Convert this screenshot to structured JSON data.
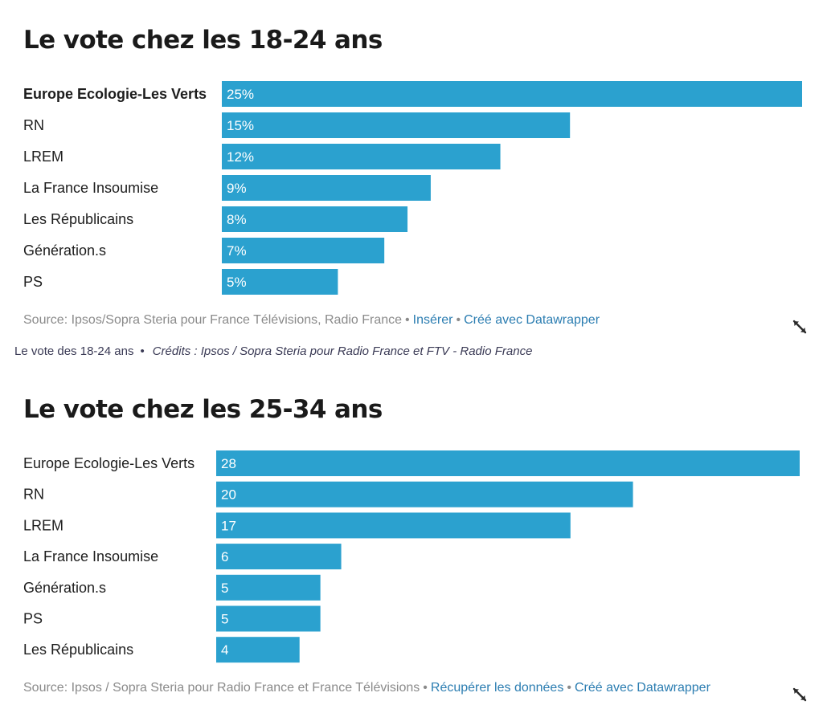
{
  "colors": {
    "bar": "#2ba1cf",
    "link": "#2b7db1",
    "source": "#8a8a8a"
  },
  "caption": {
    "title": "Le vote des 18-24 ans",
    "separator": "•",
    "credits": "Crédits : Ipsos / Sopra Steria pour Radio France et FTV - Radio France"
  },
  "chart_data": [
    {
      "type": "bar",
      "orientation": "horizontal",
      "title": "Le vote chez les 18-24 ans",
      "categories": [
        "Europe Ecologie-Les Verts",
        "RN",
        "LREM",
        "La France Insoumise",
        "Les Républicains",
        "Génération.s",
        "PS"
      ],
      "values": [
        25,
        15,
        12,
        9,
        8,
        7,
        5
      ],
      "value_labels": [
        "25%",
        "15%",
        "12%",
        "9%",
        "8%",
        "7%",
        "5%"
      ],
      "highlighted": "Europe Ecologie-Les Verts",
      "xlim": [
        0,
        25
      ],
      "grid": false,
      "legend": "none",
      "source": {
        "text": "Source: Ipsos/Sopra Steria pour France Télévisions, Radio France",
        "links": [
          "Insérer",
          "Créé avec Datawrapper"
        ]
      }
    },
    {
      "type": "bar",
      "orientation": "horizontal",
      "title": "Le vote chez les 25-34 ans",
      "categories": [
        "Europe Ecologie-Les Verts",
        "RN",
        "LREM",
        "La France Insoumise",
        "Génération.s",
        "PS",
        "Les Républicains"
      ],
      "values": [
        28,
        20,
        17,
        6,
        5,
        5,
        4
      ],
      "value_labels": [
        "28",
        "20",
        "17",
        "6",
        "5",
        "5",
        "4"
      ],
      "highlighted": "",
      "xlim": [
        0,
        28
      ],
      "grid": false,
      "legend": "none",
      "source": {
        "text": "Source: Ipsos / Sopra Steria pour Radio France et France Télévisions",
        "links": [
          "Récupérer les données",
          "Créé avec Datawrapper"
        ]
      }
    }
  ]
}
